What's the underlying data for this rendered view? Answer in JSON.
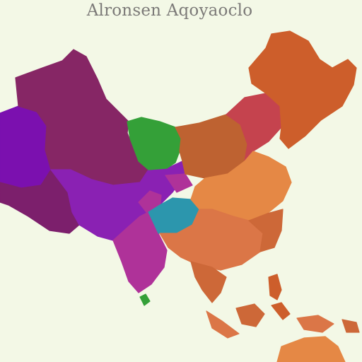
{
  "title": "Alronsen Aqoyaoclo",
  "colors": {
    "background": "#f3f8e6",
    "title_text": "#7c7a78",
    "purple": "#7f11b4",
    "dark_magenta": "#8a2768",
    "violet": "#8e22b9",
    "plum": "#80206f",
    "green": "#36a53a",
    "brown_orange": "#c46532",
    "red_rose": "#cb4550",
    "orange": "#d3612c",
    "teal": "#2d9bb2",
    "magenta": "#b4349e",
    "light_orange": "#ec8c47",
    "salmon": "#e27a49",
    "rust": "#d36b3a"
  }
}
